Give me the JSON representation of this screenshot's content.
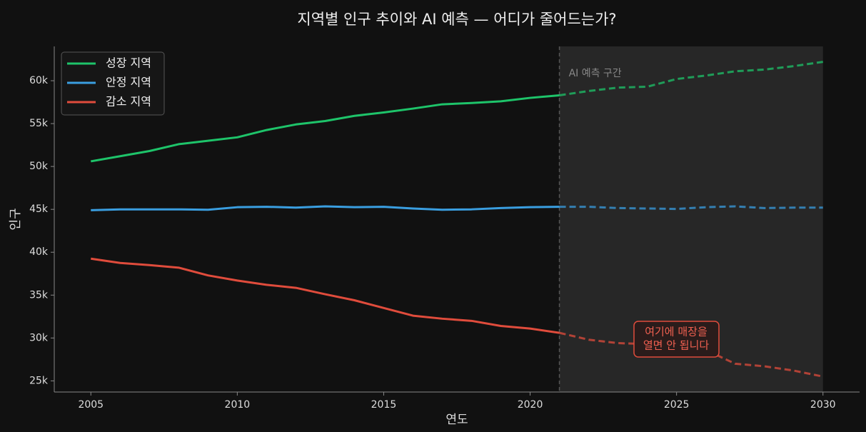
{
  "chart_data": {
    "type": "line",
    "title": "지역별 인구 추이와 AI 예측 — 어디가 줄어드는가?",
    "xlabel": "연도",
    "ylabel": "인구",
    "region_label": "AI 예측 구간",
    "annotation_lines": [
      "여기에 매장을",
      "열면 안 됩니다"
    ],
    "forecast_start": 2021,
    "x": [
      2005,
      2006,
      2007,
      2008,
      2009,
      2010,
      2011,
      2012,
      2013,
      2014,
      2015,
      2016,
      2017,
      2018,
      2019,
      2020,
      2021,
      2022,
      2023,
      2024,
      2025,
      2026,
      2027,
      2028,
      2029,
      2030
    ],
    "series": [
      {
        "name": "성장 지역",
        "color": "#1ec46a",
        "values": [
          50600,
          51200,
          51800,
          52600,
          53000,
          53400,
          54250,
          54900,
          55300,
          55900,
          56300,
          56750,
          57250,
          57400,
          57600,
          58000,
          58300,
          58800,
          59200,
          59300,
          60200,
          60600,
          61100,
          61300,
          61700,
          62200
        ]
      },
      {
        "name": "안정 지역",
        "color": "#3a9ee0",
        "values": [
          44900,
          45000,
          45000,
          45000,
          44950,
          45250,
          45300,
          45200,
          45350,
          45250,
          45300,
          45100,
          44950,
          45000,
          45150,
          45250,
          45300,
          45300,
          45150,
          45100,
          45050,
          45250,
          45350,
          45150,
          45200,
          45200
        ]
      },
      {
        "name": "감소 지역",
        "color": "#e04c3c",
        "values": [
          39250,
          38750,
          38500,
          38200,
          37300,
          36700,
          36200,
          35850,
          35100,
          34400,
          33500,
          32600,
          32250,
          32000,
          31400,
          31100,
          30600,
          29800,
          29400,
          29300,
          29200,
          28600,
          27000,
          26700,
          26200,
          25500
        ]
      }
    ],
    "xlim": [
      2003.75,
      2031.25
    ],
    "xticks": [
      2005,
      2010,
      2015,
      2020,
      2025,
      2030
    ],
    "ylim": [
      23700,
      64000
    ],
    "yticks": [
      {
        "value": 25000,
        "label": "25k"
      },
      {
        "value": 30000,
        "label": "30k"
      },
      {
        "value": 35000,
        "label": "35k"
      },
      {
        "value": 40000,
        "label": "40k"
      },
      {
        "value": 45000,
        "label": "45k"
      },
      {
        "value": 50000,
        "label": "50k"
      },
      {
        "value": 55000,
        "label": "55k"
      },
      {
        "value": 60000,
        "label": "60k"
      }
    ],
    "grid": false,
    "legend": "upper left"
  }
}
